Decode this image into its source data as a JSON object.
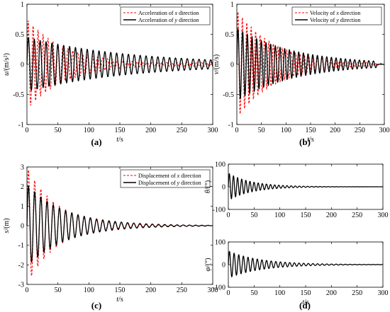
{
  "chart_data": [
    {
      "panel": "(a)",
      "type": "line",
      "xlabel": "t/s",
      "ylabel": "u/(m/s²)",
      "xlim": [
        0,
        300
      ],
      "ylim": [
        -1,
        1
      ],
      "xticks": [
        "0",
        "50",
        "100",
        "150",
        "200",
        "250",
        "300"
      ],
      "yticks": [
        "-1",
        "-0.5",
        "0",
        "0.5",
        "1"
      ],
      "legend_position": "top-right",
      "series": [
        {
          "name": "Acceleration of x direction",
          "color": "#ff0000",
          "dash": true,
          "amp": 0.75,
          "decay": 0.016,
          "period": 8,
          "end": 300,
          "floor": 0.03
        },
        {
          "name": "Acceleration of y direction",
          "color": "#000000",
          "dash": false,
          "amp": 0.45,
          "decay": 0.006,
          "period": 9.5,
          "end": 300,
          "floor": 0.03
        }
      ]
    },
    {
      "panel": "(b)",
      "type": "line",
      "xlabel": "t/s",
      "ylabel": "v/(m/s)",
      "xlim": [
        0,
        300
      ],
      "ylim": [
        -1,
        1
      ],
      "xticks": [
        "0",
        "50",
        "100",
        "150",
        "200",
        "250",
        "300"
      ],
      "yticks": [
        "-1",
        "-0.5",
        "0",
        "0.5",
        "1"
      ],
      "legend_position": "top-right",
      "series": [
        {
          "name": "Velocity of x direction",
          "color": "#ff0000",
          "dash": true,
          "amp": 0.9,
          "decay": 0.013,
          "period": 9,
          "end": 290,
          "floor": 0.0
        },
        {
          "name": "Velocity of y direction",
          "color": "#000000",
          "dash": false,
          "amp": 0.6,
          "decay": 0.0085,
          "period": 9.5,
          "end": 285,
          "floor": 0.0
        }
      ]
    },
    {
      "panel": "(c)",
      "type": "line",
      "xlabel": "t/s",
      "ylabel": "s/(m)",
      "xlim": [
        0,
        300
      ],
      "ylim": [
        -3,
        3
      ],
      "xticks": [
        "0",
        "50",
        "100",
        "150",
        "200",
        "250",
        "300"
      ],
      "yticks": [
        "-3",
        "-2",
        "-1",
        "0",
        "1",
        "2",
        "3"
      ],
      "legend_position": "top-right",
      "series": [
        {
          "name": "Displacement of x direction",
          "color": "#ff0000",
          "dash": true,
          "amp": 3.0,
          "decay": 0.021,
          "period": 10,
          "end": 295,
          "floor": 0.0
        },
        {
          "name": "Displacement of y direction",
          "color": "#000000",
          "dash": false,
          "amp": 2.1,
          "decay": 0.016,
          "period": 10,
          "end": 295,
          "floor": 0.0
        }
      ]
    },
    {
      "panel": "(d)",
      "type": "line",
      "subplots": [
        {
          "ylabel": "θ/(°)",
          "xlim": [
            0,
            300
          ],
          "ylim": [
            -100,
            100
          ],
          "xticks": [
            "0",
            "50",
            "100",
            "150",
            "200",
            "250",
            "300"
          ],
          "yticks": [
            "-100",
            "0",
            "100"
          ],
          "series": [
            {
              "color": "#000000",
              "dash": false,
              "amp": 60,
              "decay": 0.022,
              "period": 8,
              "end": 300,
              "floor": 0.0
            }
          ]
        },
        {
          "ylabel": "φ/(°)",
          "xlabel": "t/s",
          "xlim": [
            0,
            300
          ],
          "ylim": [
            -100,
            100
          ],
          "xticks": [
            "0",
            "50",
            "100",
            "150",
            "200",
            "250",
            "300"
          ],
          "yticks": [
            "-100",
            "0",
            "100"
          ],
          "series": [
            {
              "color": "#000000",
              "dash": false,
              "amp": 60,
              "decay": 0.016,
              "period": 9,
              "end": 300,
              "floor": 0.0
            }
          ]
        }
      ]
    }
  ]
}
